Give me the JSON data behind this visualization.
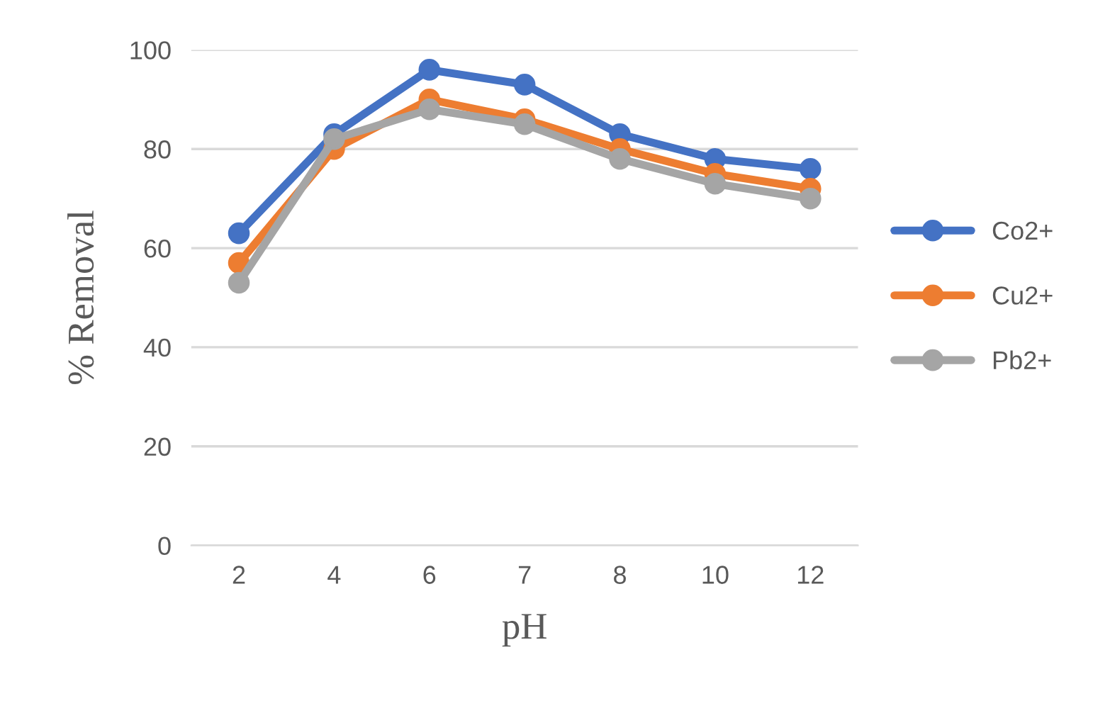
{
  "chart_data": {
    "type": "line",
    "xlabel": "pH",
    "ylabel": "% Removal",
    "categories": [
      "2",
      "4",
      "6",
      "7",
      "8",
      "10",
      "12"
    ],
    "series": [
      {
        "name": "Co2+",
        "color": "#4472c4",
        "values": [
          63,
          83,
          96,
          93,
          83,
          78,
          76
        ]
      },
      {
        "name": "Cu2+",
        "color": "#ed7d31",
        "values": [
          57,
          80,
          90,
          86,
          80,
          75,
          72
        ]
      },
      {
        "name": "Pb2+",
        "color": "#a5a5a5",
        "values": [
          53,
          82,
          88,
          85,
          78,
          73,
          70
        ]
      }
    ],
    "ylim": [
      0,
      100
    ],
    "yticks": [
      0,
      20,
      40,
      60,
      80,
      100
    ],
    "grid": "y",
    "legend": "right",
    "marker": "circle",
    "line_style": "solid"
  }
}
